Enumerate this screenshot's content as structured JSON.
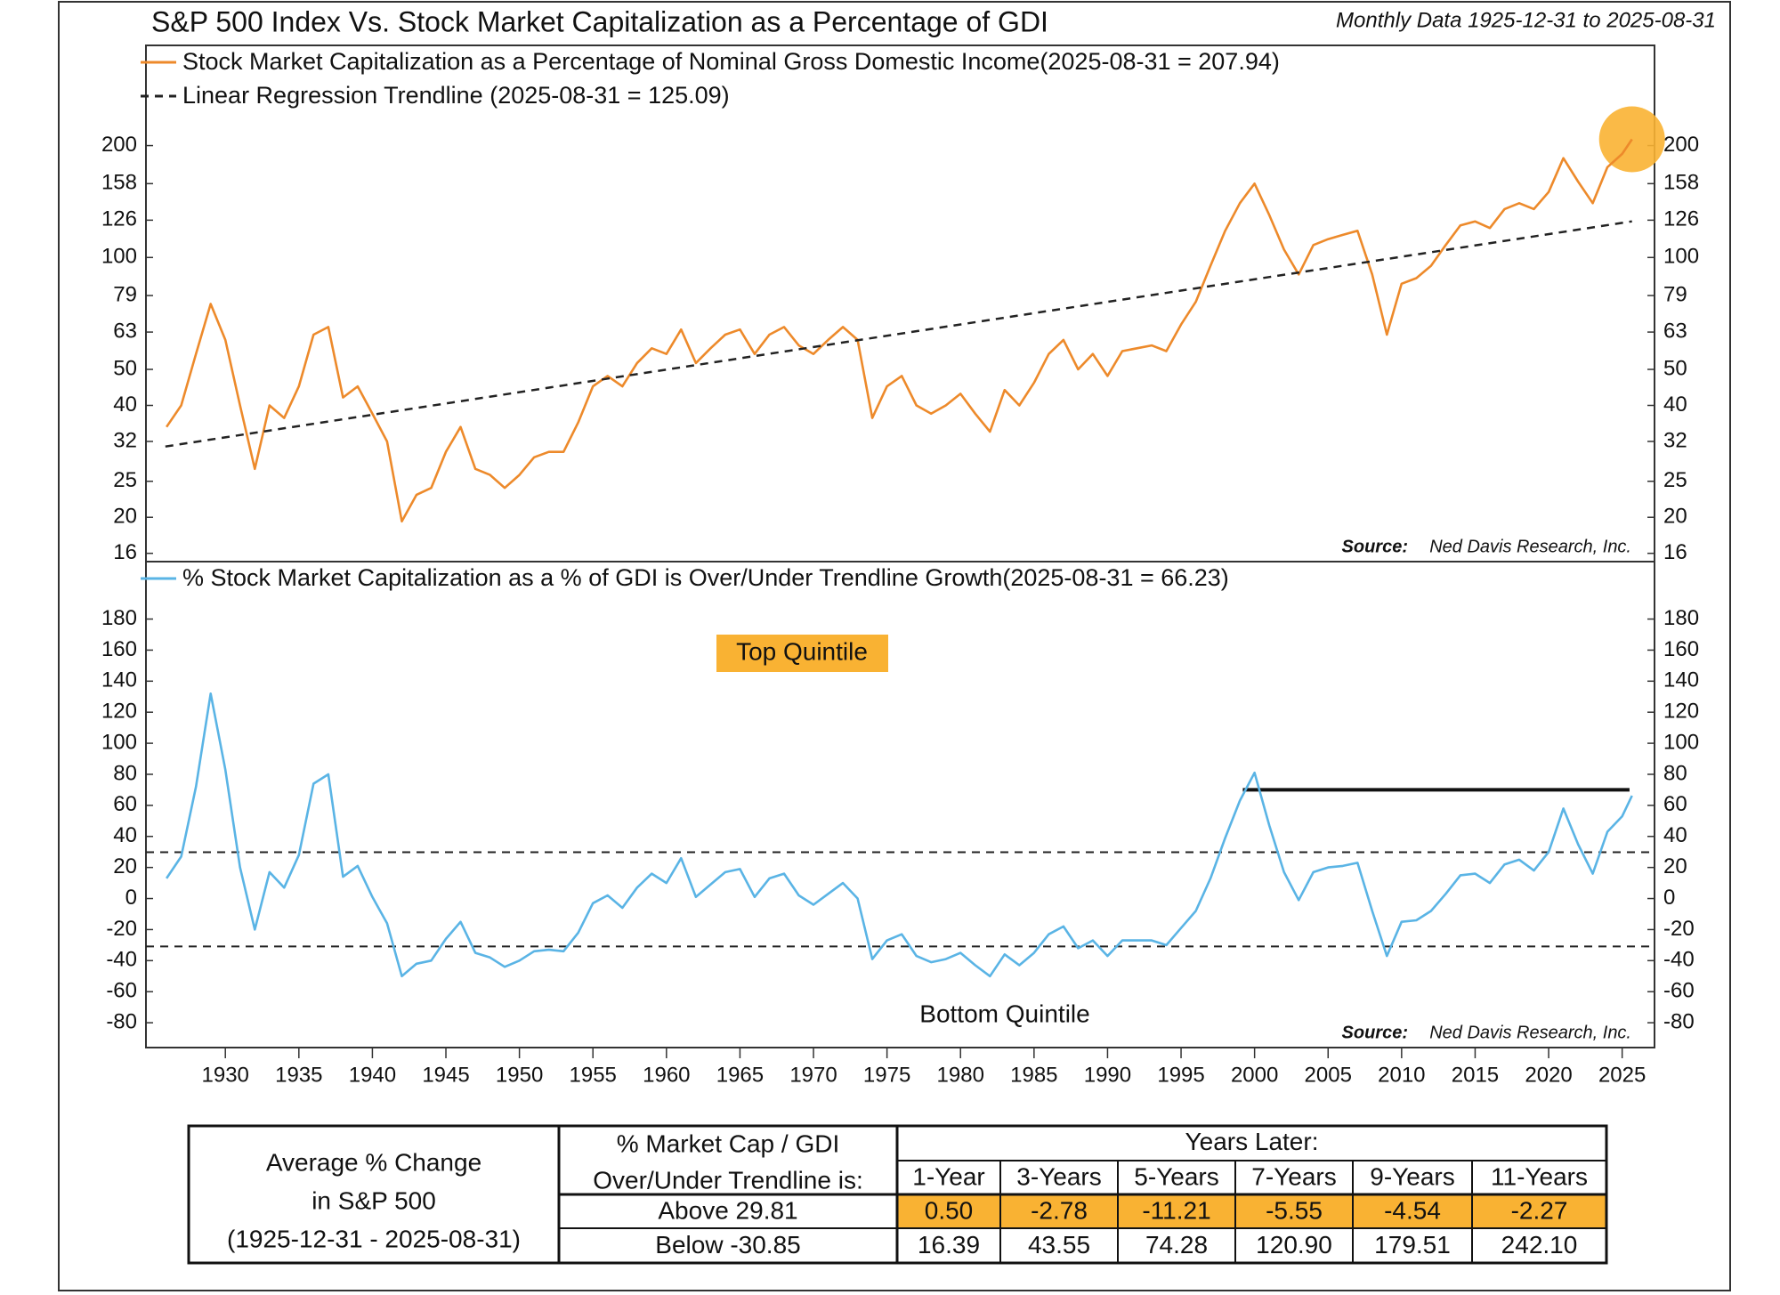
{
  "chart_data": [
    {
      "type": "line",
      "title": "S&P 500 Index Vs. Stock Market Capitalization as a Percentage of GDI",
      "subtitle": "Monthly Data 1925-12-31 to 2025-08-31",
      "x": [
        1926,
        1927,
        1928,
        1929,
        1930,
        1931,
        1932,
        1933,
        1934,
        1935,
        1936,
        1937,
        1938,
        1939,
        1940,
        1941,
        1942,
        1943,
        1944,
        1945,
        1946,
        1947,
        1948,
        1949,
        1950,
        1951,
        1952,
        1953,
        1954,
        1955,
        1956,
        1957,
        1958,
        1959,
        1960,
        1961,
        1962,
        1963,
        1964,
        1965,
        1966,
        1967,
        1968,
        1969,
        1970,
        1971,
        1972,
        1973,
        1974,
        1975,
        1976,
        1977,
        1978,
        1979,
        1980,
        1981,
        1982,
        1983,
        1984,
        1985,
        1986,
        1987,
        1988,
        1989,
        1990,
        1991,
        1992,
        1993,
        1994,
        1995,
        1996,
        1997,
        1998,
        1999,
        2000,
        2001,
        2002,
        2003,
        2004,
        2005,
        2006,
        2007,
        2008,
        2009,
        2010,
        2011,
        2012,
        2013,
        2014,
        2015,
        2016,
        2017,
        2018,
        2019,
        2020,
        2021,
        2022,
        2023,
        2024,
        2025,
        2025.67
      ],
      "series": [
        {
          "name": "Stock Market Capitalization as a Percentage of Nominal Gross Domestic Income(2025-08-31 = 207.94)",
          "color": "#ed8a2b",
          "values": [
            35,
            40,
            55,
            75,
            60,
            40,
            27,
            40,
            37,
            45,
            62,
            65,
            42,
            45,
            38,
            32,
            19.5,
            23,
            24,
            30,
            35,
            27,
            26,
            24,
            26,
            29,
            30,
            30,
            36,
            45,
            48,
            45,
            52,
            57,
            55,
            64,
            52,
            57,
            62,
            64,
            55,
            62,
            65,
            58,
            55,
            60,
            65,
            60,
            37,
            45,
            48,
            40,
            38,
            40,
            43,
            38,
            34,
            44,
            40,
            46,
            55,
            60,
            50,
            55,
            48,
            56,
            57,
            58,
            56,
            66,
            76,
            95,
            118,
            140,
            158,
            130,
            105,
            90,
            108,
            112,
            115,
            118,
            90,
            62,
            85,
            88,
            95,
            108,
            122,
            125,
            120,
            135,
            140,
            135,
            150,
            185,
            160,
            140,
            175,
            190,
            207.94
          ]
        },
        {
          "name": "Linear Regression Trendline (2025-08-31 = 125.09)",
          "color": "#222222",
          "style": "dashed",
          "x": [
            1925.92,
            2025.67
          ],
          "values": [
            31,
            125.09
          ]
        }
      ],
      "xlim": [
        1924.6,
        2027.2
      ],
      "ylim": [
        15.2,
        372
      ],
      "yticks": [
        16,
        20,
        25,
        32,
        40,
        50,
        63,
        79,
        100,
        126,
        158,
        200
      ],
      "log_scale": true,
      "highlight_color": "#f9b233",
      "source_label": "Source:",
      "source": "Ned Davis Research, Inc."
    },
    {
      "type": "line",
      "x": [
        1926,
        1927,
        1928,
        1929,
        1930,
        1931,
        1932,
        1933,
        1934,
        1935,
        1936,
        1937,
        1938,
        1939,
        1940,
        1941,
        1942,
        1943,
        1944,
        1945,
        1946,
        1947,
        1948,
        1949,
        1950,
        1951,
        1952,
        1953,
        1954,
        1955,
        1956,
        1957,
        1958,
        1959,
        1960,
        1961,
        1962,
        1963,
        1964,
        1965,
        1966,
        1967,
        1968,
        1969,
        1970,
        1971,
        1972,
        1973,
        1974,
        1975,
        1976,
        1977,
        1978,
        1979,
        1980,
        1981,
        1982,
        1983,
        1984,
        1985,
        1986,
        1987,
        1988,
        1989,
        1990,
        1991,
        1992,
        1993,
        1994,
        1995,
        1996,
        1997,
        1998,
        1999,
        2000,
        2001,
        2002,
        2003,
        2004,
        2005,
        2006,
        2007,
        2008,
        2009,
        2010,
        2011,
        2012,
        2013,
        2014,
        2015,
        2016,
        2017,
        2018,
        2019,
        2020,
        2021,
        2022,
        2023,
        2024,
        2025,
        2025.67
      ],
      "series": [
        {
          "name": "% Stock Market Capitalization as a % of GDI is Over/Under Trendline Growth(2025-08-31 = 66.23)",
          "color": "#5ab4e5",
          "values": [
            13,
            27,
            72,
            132,
            83,
            20,
            -20,
            17,
            7,
            28,
            74,
            80,
            14,
            21,
            1,
            -16,
            -50,
            -42,
            -40,
            -26,
            -15,
            -35,
            -38,
            -44,
            -40,
            -34,
            -33,
            -34,
            -22,
            -3,
            2,
            -6,
            7,
            16,
            10,
            26,
            1,
            9,
            17,
            19,
            1,
            13,
            16,
            2,
            -4,
            3,
            10,
            0,
            -39,
            -27,
            -23,
            -37,
            -41,
            -39,
            -35,
            -43,
            -50,
            -36,
            -43,
            -35,
            -23,
            -18,
            -32,
            -27,
            -37,
            -27,
            -27,
            -27,
            -30,
            -19,
            -8,
            13,
            39,
            63,
            81,
            47,
            17,
            -1,
            17,
            20,
            21,
            23,
            -8,
            -37,
            -15,
            -14,
            -8,
            3,
            15,
            16,
            10,
            22,
            25,
            18,
            30,
            58,
            35,
            16,
            43,
            53,
            66.23
          ]
        }
      ],
      "xlim": [
        1924.6,
        2027.2
      ],
      "xticks": [
        1930,
        1935,
        1940,
        1945,
        1950,
        1955,
        1960,
        1965,
        1970,
        1975,
        1980,
        1985,
        1990,
        1995,
        2000,
        2005,
        2010,
        2015,
        2020,
        2025
      ],
      "ylim": [
        -96,
        217
      ],
      "yticks": [
        180,
        160,
        140,
        120,
        100,
        80,
        60,
        40,
        20,
        0,
        -20,
        -40,
        -60,
        -80
      ],
      "reference_lines": [
        29.81,
        -30.85
      ],
      "threshold_line": {
        "value": 70,
        "x": [
          1999.2,
          2025.5
        ]
      },
      "annotations": [
        "Top Quintile",
        "Bottom Quintile"
      ],
      "annotation_highlight": "#f9b233",
      "source_label": "Source:",
      "source": "Ned Davis Research, Inc."
    }
  ],
  "table": {
    "row_header": [
      "Average % Change",
      "in S&P 500",
      "(1925-12-31 - 2025-08-31)"
    ],
    "column_header": [
      "% Market Cap / GDI",
      "Over/Under Trendline is:"
    ],
    "group_header": "Years Later:",
    "columns": [
      "1-Year",
      "3-Years",
      "5-Years",
      "7-Years",
      "9-Years",
      "11-Years"
    ],
    "rows": [
      {
        "label": "Above 29.81",
        "values": [
          "0.50",
          "-2.78",
          "-11.21",
          "-5.55",
          "-4.54",
          "-2.27"
        ]
      },
      {
        "label": "Below -30.85",
        "values": [
          "16.39",
          "43.55",
          "74.28",
          "120.90",
          "179.51",
          "242.10"
        ]
      }
    ],
    "highlight_row": 0,
    "highlight_color": "#f9b233"
  }
}
